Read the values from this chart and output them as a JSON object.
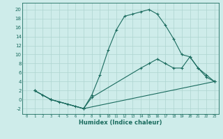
{
  "bg_color": "#ceecea",
  "grid_color": "#aed4d0",
  "line_color": "#1a6b5e",
  "line_width": 0.8,
  "marker": "+",
  "marker_size": 3,
  "marker_ew": 0.8,
  "xlabel": "Humidex (Indice chaleur)",
  "xlim": [
    -0.5,
    23.5
  ],
  "ylim": [
    -3.2,
    21.5
  ],
  "xticks": [
    0,
    1,
    2,
    3,
    4,
    5,
    6,
    7,
    8,
    9,
    10,
    11,
    12,
    13,
    14,
    15,
    16,
    17,
    18,
    19,
    20,
    21,
    22,
    23
  ],
  "yticks": [
    -2,
    0,
    2,
    4,
    6,
    8,
    10,
    12,
    14,
    16,
    18,
    20
  ],
  "line1_x": [
    1,
    2,
    3,
    4,
    5,
    6,
    7,
    8,
    9,
    10,
    11,
    12,
    13,
    14,
    15,
    16,
    17,
    18,
    19,
    20,
    21,
    22,
    23
  ],
  "line1_y": [
    2,
    1,
    0,
    -0.5,
    -1,
    -1.5,
    -2,
    1,
    5.5,
    11,
    15.5,
    18.5,
    19,
    19.5,
    20,
    19,
    16.5,
    13.5,
    10,
    9.5,
    7,
    5,
    4
  ],
  "line2_x": [
    1,
    3,
    7,
    8,
    14,
    15,
    16,
    17,
    18,
    19,
    20,
    21,
    22,
    23
  ],
  "line2_y": [
    2,
    0,
    -2,
    0.5,
    7,
    8,
    9,
    8,
    7,
    7,
    9.5,
    7,
    5.5,
    4
  ],
  "line3_x": [
    1,
    3,
    7,
    23
  ],
  "line3_y": [
    2,
    0,
    -2,
    4
  ]
}
